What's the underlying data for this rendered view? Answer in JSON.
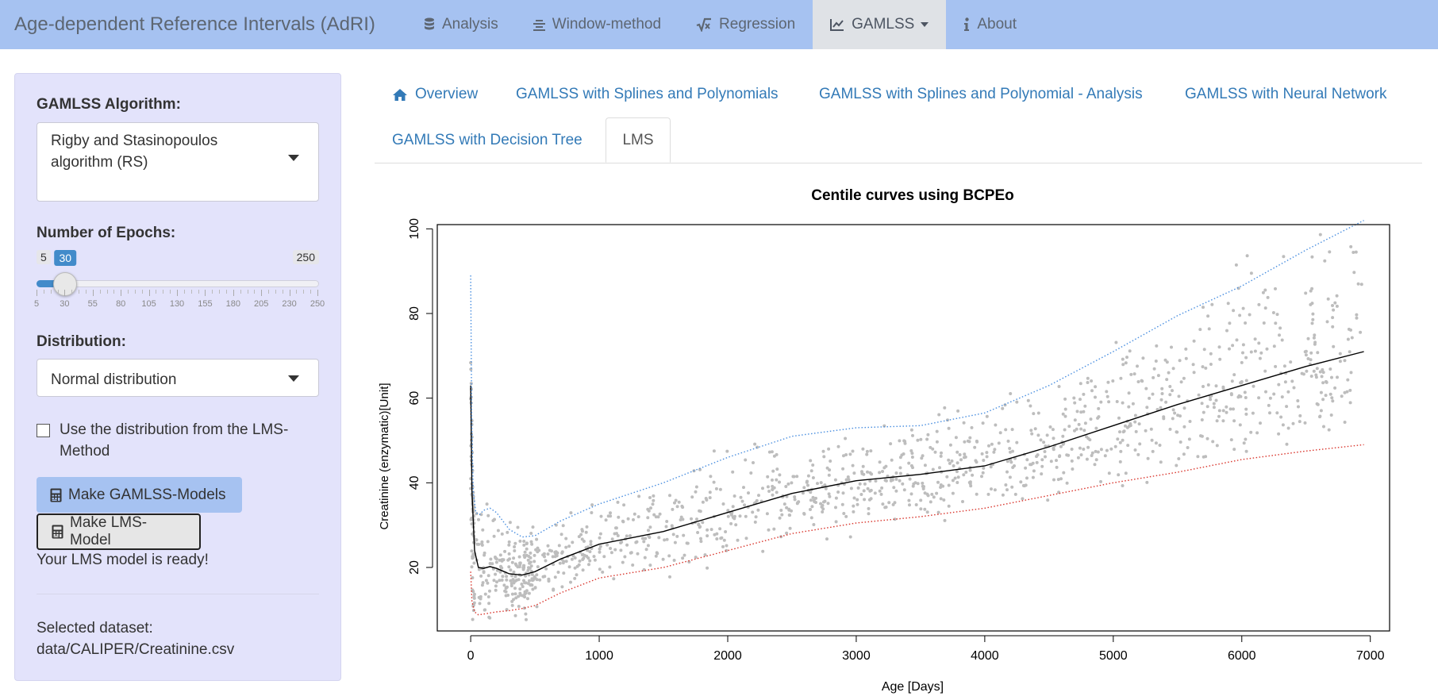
{
  "navbar": {
    "brand": "Age-dependent Reference Intervals (AdRI)",
    "items": [
      {
        "label": "Analysis",
        "icon": "database-icon"
      },
      {
        "label": "Window-method",
        "icon": "align-center-icon"
      },
      {
        "label": "Regression",
        "icon": "square-root-icon"
      },
      {
        "label": "GAMLSS",
        "icon": "line-chart-icon",
        "active": true
      },
      {
        "label": "About",
        "icon": "info-icon"
      }
    ]
  },
  "sidebar": {
    "algorithm_label": "GAMLSS Algorithm:",
    "algorithm_value": "Rigby and Stasinopoulos algorithm (RS)",
    "epochs_label": "Number of Epochs:",
    "epochs": {
      "min": 5,
      "max": 250,
      "value": 30,
      "min_label": "5",
      "max_label": "250",
      "value_label": "30",
      "tick_labels": [
        "5",
        "30",
        "55",
        "80",
        "105",
        "130",
        "155",
        "180",
        "205",
        "230",
        "250"
      ]
    },
    "distribution_label": "Distribution:",
    "distribution_value": "Normal distribution",
    "lms_checkbox_label": "Use the distribution from the LMS-Method",
    "lms_checkbox_checked": false,
    "make_gamlss_button": "Make GAMLSS-Models",
    "make_lms_button": "Make LMS-Model",
    "status": "Your LMS model is ready!",
    "dataset_label": "Selected dataset:",
    "dataset_path": "data/CALIPER/Creatinine.csv"
  },
  "tabs": [
    {
      "label": "Overview",
      "icon": "home-icon"
    },
    {
      "label": "GAMLSS with Splines and Polynomials"
    },
    {
      "label": "GAMLSS with Splines and Polynomial - Analysis"
    },
    {
      "label": "GAMLSS with Neural Network"
    },
    {
      "label": "GAMLSS with Decision Tree"
    },
    {
      "label": "LMS",
      "active": true
    }
  ],
  "chart_data": {
    "type": "scatter",
    "title": "Centile curves using BCPEo",
    "xlabel": "Age [Days]",
    "ylabel": "Creatinine (enzymatic)[Unit]",
    "xlim": [
      -260,
      7150
    ],
    "ylim": [
      5,
      101
    ],
    "x_ticks": [
      0,
      1000,
      2000,
      3000,
      4000,
      5000,
      6000,
      7000
    ],
    "y_ticks": [
      20,
      40,
      60,
      80,
      100
    ],
    "grid": false,
    "legend": "none",
    "colors": {
      "points": "#bdbdbd",
      "median": "#000000",
      "upper": "#4a8fe0",
      "lower": "#d9342b"
    },
    "series": [
      {
        "role": "median",
        "style": "solid",
        "x": [
          0,
          10,
          30,
          60,
          100,
          150,
          200,
          300,
          400,
          500,
          700,
          1000,
          1500,
          2000,
          2500,
          3000,
          3500,
          4000,
          4500,
          5000,
          5500,
          6000,
          6500,
          6950
        ],
        "y": [
          63,
          38,
          24,
          20,
          19.8,
          20.2,
          19.8,
          18.5,
          18.2,
          19,
          22,
          25.5,
          28.5,
          33,
          37.5,
          40.5,
          42,
          44,
          48.5,
          53.5,
          58.5,
          63,
          67.5,
          71
        ]
      },
      {
        "role": "upper",
        "style": "dotted",
        "x": [
          0,
          8,
          20,
          40,
          70,
          100,
          150,
          200,
          300,
          400,
          500,
          700,
          1000,
          1500,
          2000,
          2500,
          3000,
          3500,
          4000,
          4500,
          5000,
          5500,
          6000,
          6500,
          6950
        ],
        "y": [
          89,
          55,
          38,
          33,
          32.5,
          33.5,
          34,
          33,
          29,
          27.2,
          27.5,
          31,
          35,
          40,
          46,
          51,
          53,
          53.5,
          56.5,
          63,
          71,
          79.5,
          86.5,
          95,
          102
        ]
      },
      {
        "role": "lower",
        "style": "dotted",
        "x": [
          0,
          10,
          30,
          60,
          100,
          200,
          300,
          400,
          500,
          700,
          1000,
          1500,
          2000,
          2500,
          3000,
          3500,
          4000,
          4500,
          5000,
          5500,
          6000,
          6500,
          6950
        ],
        "y": [
          19,
          12,
          9.5,
          8.8,
          9,
          9.5,
          9.8,
          10.3,
          11,
          14,
          17.5,
          20,
          24,
          28,
          30.5,
          32,
          34,
          37,
          40,
          42.5,
          45.5,
          47.5,
          49
        ]
      }
    ],
    "scatter_note_count": 1400
  }
}
